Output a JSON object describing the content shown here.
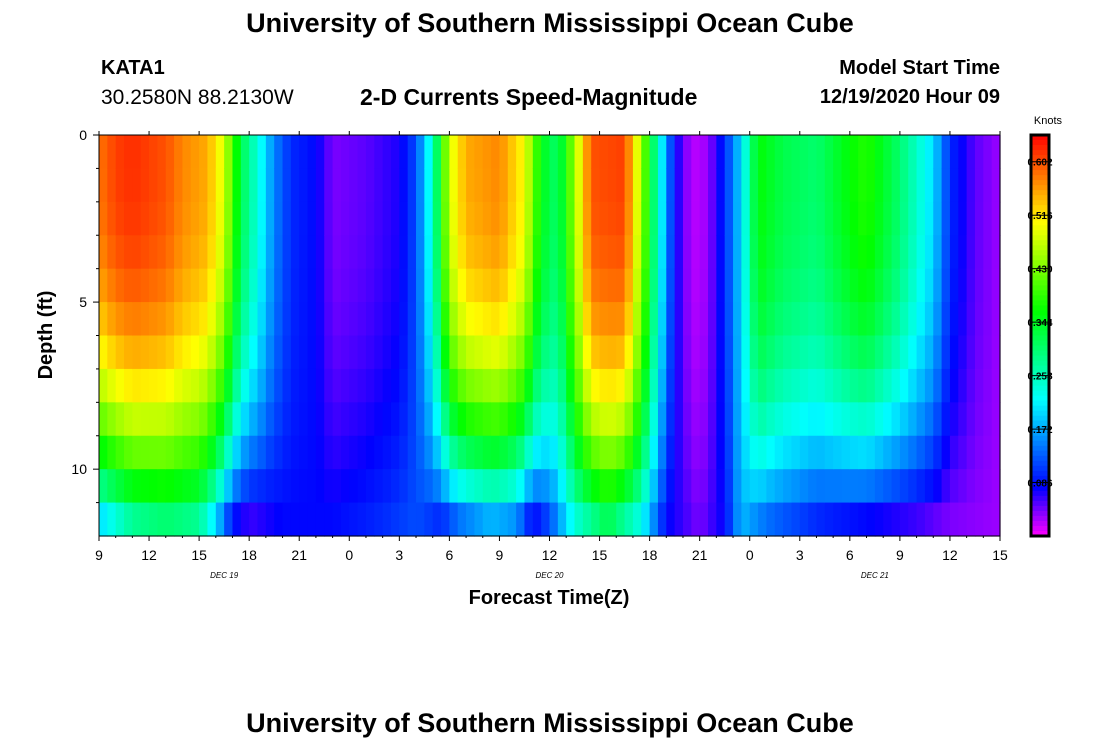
{
  "header": {
    "title": "University of Southern Mississippi Ocean Cube",
    "station_id": "KATA1",
    "station_location": "30.2580N 88.2130W",
    "chart_title": "2-D Currents Speed-Magnitude",
    "model_start_label": "Model Start Time",
    "model_start_value": "12/19/2020 Hour 09"
  },
  "footer": {
    "title": "University of Southern Mississippi Ocean Cube"
  },
  "chart_data": {
    "type": "heatmap",
    "title": "2-D Currents Speed-Magnitude",
    "xlabel": "Forecast Time(Z)",
    "ylabel": "Depth (ft)",
    "x_hours_start": 9,
    "x_hours_end": 63,
    "x_ticks": [
      {
        "hour": 9,
        "label": "9"
      },
      {
        "hour": 12,
        "label": "12"
      },
      {
        "hour": 15,
        "label": "15"
      },
      {
        "hour": 18,
        "label": "18"
      },
      {
        "hour": 21,
        "label": "21"
      },
      {
        "hour": 24,
        "label": "0"
      },
      {
        "hour": 27,
        "label": "3"
      },
      {
        "hour": 30,
        "label": "6"
      },
      {
        "hour": 33,
        "label": "9"
      },
      {
        "hour": 36,
        "label": "12"
      },
      {
        "hour": 39,
        "label": "15"
      },
      {
        "hour": 42,
        "label": "18"
      },
      {
        "hour": 45,
        "label": "21"
      },
      {
        "hour": 48,
        "label": "0"
      },
      {
        "hour": 51,
        "label": "3"
      },
      {
        "hour": 54,
        "label": "6"
      },
      {
        "hour": 57,
        "label": "9"
      },
      {
        "hour": 60,
        "label": "12"
      },
      {
        "hour": 63,
        "label": "15"
      }
    ],
    "date_labels": [
      {
        "hour": 16.5,
        "label": "DEC 19"
      },
      {
        "hour": 36,
        "label": "DEC 20"
      },
      {
        "hour": 55.5,
        "label": "DEC 21"
      }
    ],
    "ylim": [
      0,
      12
    ],
    "y_ticks": [
      {
        "depth": 0,
        "label": "0"
      },
      {
        "depth": 5,
        "label": "5"
      },
      {
        "depth": 10,
        "label": "10"
      }
    ],
    "depth_levels": [
      0.5,
      1.5,
      2.5,
      3.5,
      4.5,
      5.5,
      6.5,
      7.5,
      8.5,
      9.5,
      10.5,
      11.5
    ],
    "colorbar": {
      "label": "Knots",
      "min": 0.0,
      "max": 0.645,
      "ticks": [
        0.086,
        0.172,
        0.258,
        0.344,
        0.43,
        0.516,
        0.602
      ],
      "tick_labels": [
        "0.086",
        "0.172",
        "0.258",
        "0.344",
        "0.430",
        "0.516",
        "0.602"
      ]
    },
    "speed_knots": {
      "surface_profile": [
        {
          "hour": 9,
          "value": 0.58
        },
        {
          "hour": 10,
          "value": 0.61
        },
        {
          "hour": 11,
          "value": 0.62
        },
        {
          "hour": 13,
          "value": 0.6
        },
        {
          "hour": 14,
          "value": 0.57
        },
        {
          "hour": 15.5,
          "value": 0.55
        },
        {
          "hour": 16.5,
          "value": 0.48
        },
        {
          "hour": 17.5,
          "value": 0.32
        },
        {
          "hour": 18.5,
          "value": 0.24
        },
        {
          "hour": 19.5,
          "value": 0.15
        },
        {
          "hour": 20.5,
          "value": 0.1
        },
        {
          "hour": 22,
          "value": 0.08
        },
        {
          "hour": 23,
          "value": 0.04
        },
        {
          "hour": 25,
          "value": 0.05
        },
        {
          "hour": 27,
          "value": 0.07
        },
        {
          "hour": 28,
          "value": 0.12
        },
        {
          "hour": 29,
          "value": 0.25
        },
        {
          "hour": 30,
          "value": 0.48
        },
        {
          "hour": 31,
          "value": 0.55
        },
        {
          "hour": 33,
          "value": 0.57
        },
        {
          "hour": 34.5,
          "value": 0.5
        },
        {
          "hour": 35.5,
          "value": 0.35
        },
        {
          "hour": 36.5,
          "value": 0.3
        },
        {
          "hour": 37.5,
          "value": 0.45
        },
        {
          "hour": 38.5,
          "value": 0.6
        },
        {
          "hour": 40.5,
          "value": 0.61
        },
        {
          "hour": 41.5,
          "value": 0.45
        },
        {
          "hour": 42.5,
          "value": 0.25
        },
        {
          "hour": 43.5,
          "value": 0.08
        },
        {
          "hour": 44.5,
          "value": 0.02
        },
        {
          "hour": 45.5,
          "value": 0.03
        },
        {
          "hour": 46.5,
          "value": 0.1
        },
        {
          "hour": 47.5,
          "value": 0.2
        },
        {
          "hour": 48.5,
          "value": 0.36
        },
        {
          "hour": 50,
          "value": 0.32
        },
        {
          "hour": 52,
          "value": 0.3
        },
        {
          "hour": 54,
          "value": 0.36
        },
        {
          "hour": 55,
          "value": 0.38
        },
        {
          "hour": 57,
          "value": 0.3
        },
        {
          "hour": 59,
          "value": 0.2
        },
        {
          "hour": 60,
          "value": 0.1
        },
        {
          "hour": 61.5,
          "value": 0.05
        },
        {
          "hour": 63,
          "value": 0.03
        }
      ],
      "bottom_profile": [
        {
          "hour": 9,
          "value": 0.2
        },
        {
          "hour": 11,
          "value": 0.28
        },
        {
          "hour": 13,
          "value": 0.3
        },
        {
          "hour": 15,
          "value": 0.28
        },
        {
          "hour": 16,
          "value": 0.2
        },
        {
          "hour": 17,
          "value": 0.09
        },
        {
          "hour": 18,
          "value": 0.06
        },
        {
          "hour": 20,
          "value": 0.08
        },
        {
          "hour": 23,
          "value": 0.08
        },
        {
          "hour": 26,
          "value": 0.1
        },
        {
          "hour": 28,
          "value": 0.12
        },
        {
          "hour": 29.5,
          "value": 0.1
        },
        {
          "hour": 30.5,
          "value": 0.14
        },
        {
          "hour": 32.5,
          "value": 0.18
        },
        {
          "hour": 34,
          "value": 0.16
        },
        {
          "hour": 35,
          "value": 0.08
        },
        {
          "hour": 36,
          "value": 0.12
        },
        {
          "hour": 37.5,
          "value": 0.24
        },
        {
          "hour": 39.5,
          "value": 0.32
        },
        {
          "hour": 41.5,
          "value": 0.23
        },
        {
          "hour": 43,
          "value": 0.08
        },
        {
          "hour": 45,
          "value": 0.04
        },
        {
          "hour": 46.5,
          "value": 0.08
        },
        {
          "hour": 47.5,
          "value": 0.18
        },
        {
          "hour": 49,
          "value": 0.14
        },
        {
          "hour": 52,
          "value": 0.1
        },
        {
          "hour": 55,
          "value": 0.08
        },
        {
          "hour": 58,
          "value": 0.06
        },
        {
          "hour": 60,
          "value": 0.04
        },
        {
          "hour": 63,
          "value": 0.03
        }
      ]
    }
  }
}
